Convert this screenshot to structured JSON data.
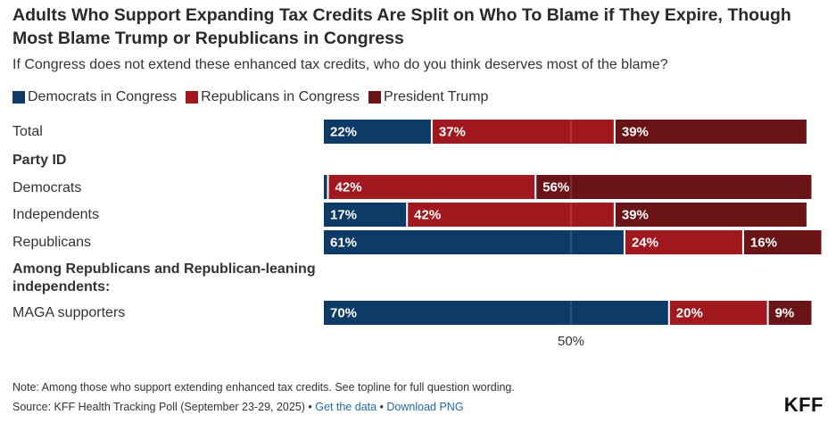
{
  "header": {
    "title": "Adults Who Support Expanding Tax Credits Are Split on Who To Blame if They Expire, Though Most Blame Trump or Republicans in Congress",
    "subtitle": "If Congress does not extend these enhanced tax credits, who do you think deserves most of the blame?"
  },
  "footer": {
    "note": "Note: Among those who support extending enhanced tax credits. See topline for full question wording.",
    "source_prefix": "Source: KFF Health Tracking Poll (September 23-29, 2025) • ",
    "get_data_link": "Get the data",
    "separator": " • ",
    "download_link": "Download PNG",
    "logo": "KFF"
  },
  "chart_data": {
    "type": "bar",
    "orientation": "horizontal",
    "stacked": true,
    "title": "Adults Who Support Expanding Tax Credits Are Split on Who To Blame if They Expire, Though Most Blame Trump or Republicans in Congress",
    "subtitle": "If Congress does not extend these enhanced tax credits, who do you think deserves most of the blame?",
    "xlabel": "",
    "ylabel": "",
    "xlim": [
      0,
      100
    ],
    "x_ticks": [
      {
        "value": 50,
        "label": "50%"
      }
    ],
    "grid": "vertical line at 50%",
    "legend_position": "top-left",
    "series": [
      {
        "name": "Democrats in Congress",
        "color": "#0d3a66"
      },
      {
        "name": "Republicans in Congress",
        "color": "#a1191f"
      },
      {
        "name": "President Trump",
        "color": "#6b1418"
      }
    ],
    "rows": [
      {
        "label": "Total",
        "type": "data",
        "values": [
          22,
          37,
          39
        ],
        "labels": [
          "22%",
          "37%",
          "39%"
        ]
      },
      {
        "label": "Party ID",
        "type": "heading"
      },
      {
        "label": "Democrats",
        "type": "data",
        "values": [
          1,
          42,
          56
        ],
        "labels": [
          "",
          "42%",
          "56%"
        ]
      },
      {
        "label": "Independents",
        "type": "data",
        "values": [
          17,
          42,
          39
        ],
        "labels": [
          "17%",
          "42%",
          "39%"
        ]
      },
      {
        "label": "Republicans",
        "type": "data",
        "values": [
          61,
          24,
          16
        ],
        "labels": [
          "61%",
          "24%",
          "16%"
        ]
      },
      {
        "label": "Among Republicans and Republican-leaning independents:",
        "type": "heading"
      },
      {
        "label": "MAGA supporters",
        "type": "data",
        "values": [
          70,
          20,
          9
        ],
        "labels": [
          "70%",
          "20%",
          "9%"
        ]
      }
    ]
  }
}
